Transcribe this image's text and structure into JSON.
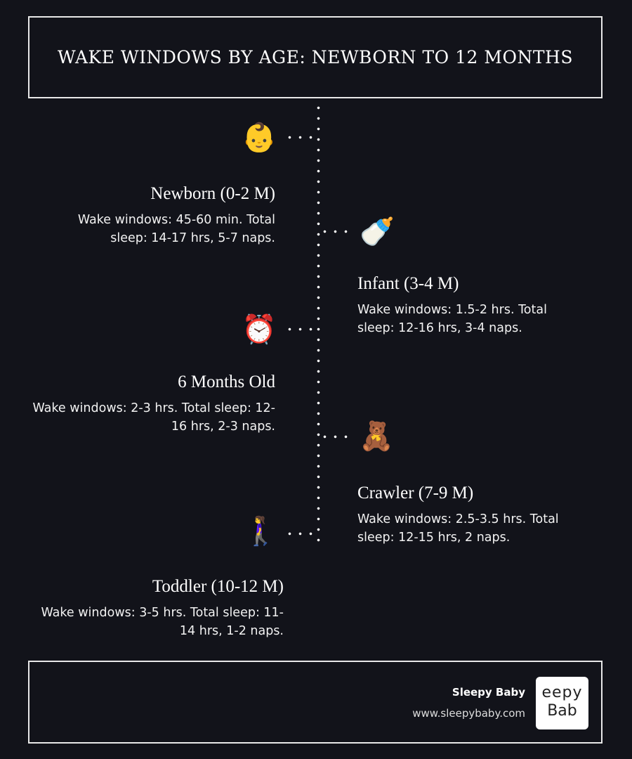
{
  "title": "WAKE WINDOWS BY AGE: NEWBORN TO 12 MONTHS",
  "stages": [
    {
      "icon": "baby-face-icon",
      "emoji": "👶",
      "title": "Newborn (0-2 M)",
      "description": "Wake windows: 45-60 min. Total sleep: 14-17 hrs, 5-7 naps."
    },
    {
      "icon": "baby-bottle-icon",
      "emoji": "🍼",
      "title": "Infant (3-4 M)",
      "description": "Wake windows: 1.5-2 hrs. Total sleep: 12-16 hrs, 3-4 naps."
    },
    {
      "icon": "alarm-clock-icon",
      "emoji": "⏰",
      "title": "6 Months Old",
      "description": "Wake windows: 2-3 hrs. Total sleep: 12-16 hrs, 2-3 naps."
    },
    {
      "icon": "teddy-bear-icon",
      "emoji": "🧸",
      "title": "Crawler (7-9 M)",
      "description": "Wake windows: 2.5-3.5 hrs. Total sleep: 12-15 hrs, 2 naps."
    },
    {
      "icon": "person-walking-icon",
      "emoji": "🚶‍♀️",
      "title": "Toddler (10-12 M)",
      "description": "Wake windows: 3-5 hrs. Total sleep: 11-14 hrs, 1-2 naps."
    }
  ],
  "footer": {
    "brand": "Sleepy Baby",
    "url": "www.sleepybaby.com",
    "logo_text": "Sleepy Baby"
  }
}
